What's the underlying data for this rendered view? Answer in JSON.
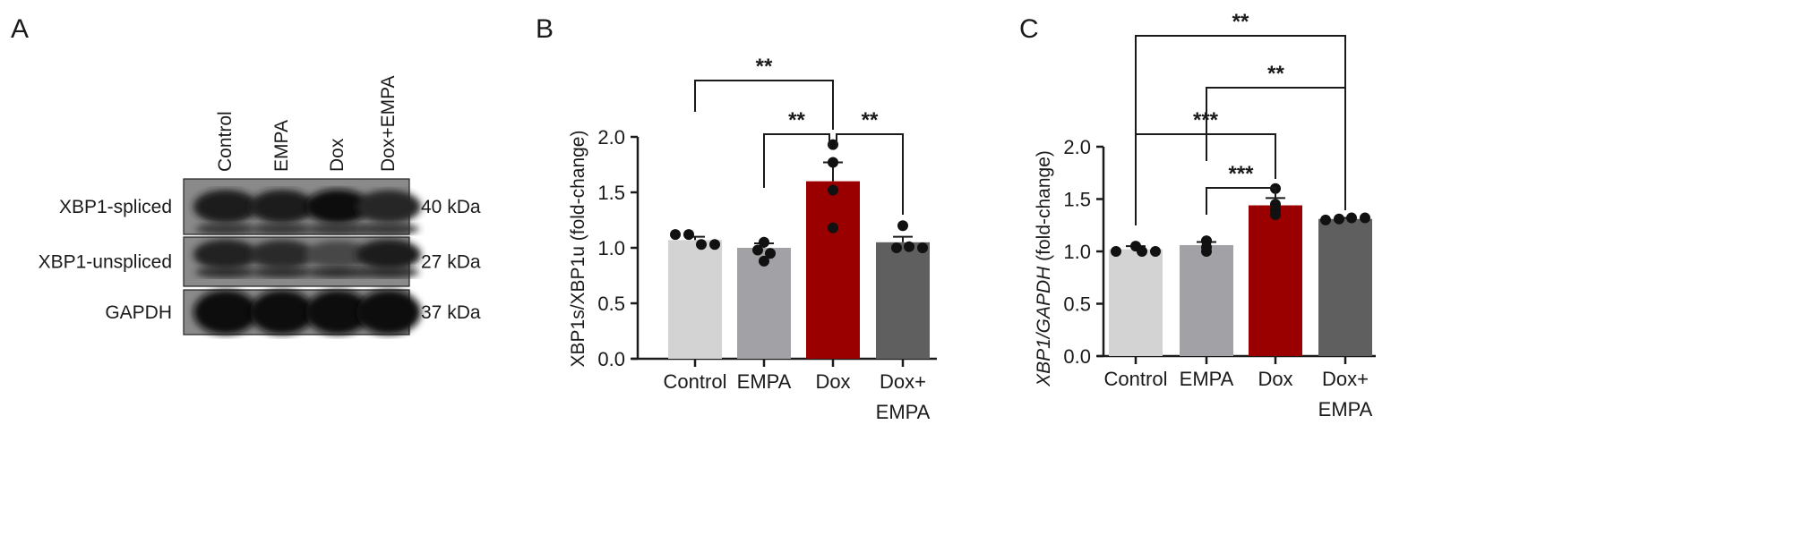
{
  "panel_a": {
    "letter": "A",
    "lanes": [
      "Control",
      "EMPA",
      "Dox",
      "Dox+EMPA"
    ],
    "rows": [
      {
        "label": "XBP1-spliced",
        "size": "40 kDa",
        "intensity": [
          0.85,
          0.85,
          1.0,
          0.75
        ]
      },
      {
        "label": "XBP1-unspliced",
        "size": "27 kDa",
        "intensity": [
          0.8,
          0.7,
          0.45,
          0.85
        ]
      },
      {
        "label": "GAPDH",
        "size": "37 kDa",
        "intensity": [
          1.0,
          1.0,
          1.0,
          1.0
        ]
      }
    ]
  },
  "chart_data": [
    {
      "type": "bar",
      "panel": "B",
      "categories": [
        "Control",
        "EMPA",
        "Dox",
        "Dox+\nEMPA"
      ],
      "category_lines": [
        [
          "Control"
        ],
        [
          "EMPA"
        ],
        [
          "Dox"
        ],
        [
          "Dox+",
          "EMPA"
        ]
      ],
      "values": [
        1.07,
        1.0,
        1.6,
        1.05
      ],
      "sem": [
        0.03,
        0.04,
        0.17,
        0.05
      ],
      "points": [
        [
          1.12,
          1.12,
          1.03,
          1.03
        ],
        [
          1.05,
          0.98,
          0.95,
          0.88
        ],
        [
          1.93,
          1.77,
          1.52,
          1.18
        ],
        [
          1.2,
          1.0,
          1.01,
          1.0
        ]
      ],
      "colors": [
        "#d3d3d3",
        "#a1a1a6",
        "#9b0000",
        "#5f5f5f"
      ],
      "ylabel": "XBP1s/XBP1u (fold-change)",
      "ylim": [
        0,
        2.0
      ],
      "yticks": [
        "0.0",
        "0.5",
        "1.0",
        "1.5",
        "2.0"
      ],
      "significance": [
        {
          "from": 0,
          "to": 2,
          "label": "**"
        },
        {
          "from": 1,
          "to": 2,
          "label": "**"
        },
        {
          "from": 2,
          "to": 3,
          "label": "**"
        }
      ]
    },
    {
      "type": "bar",
      "panel": "C",
      "categories": [
        "Control",
        "EMPA",
        "Dox",
        "Dox+\nEMPA"
      ],
      "category_lines": [
        [
          "Control"
        ],
        [
          "EMPA"
        ],
        [
          "Dox"
        ],
        [
          "Dox+",
          "EMPA"
        ]
      ],
      "values": [
        1.02,
        1.06,
        1.44,
        1.31
      ],
      "sem": [
        0.03,
        0.03,
        0.07,
        0.01
      ],
      "points": [
        [
          1.0,
          1.05,
          1.0,
          1.0
        ],
        [
          1.1,
          1.04,
          1.1,
          1.0
        ],
        [
          1.6,
          1.4,
          1.45,
          1.35
        ],
        [
          1.3,
          1.31,
          1.32,
          1.32
        ]
      ],
      "colors": [
        "#d3d3d3",
        "#a1a1a6",
        "#9b0000",
        "#5f5f5f"
      ],
      "ylabel_italic": "XBP1/GAPDH",
      "ylabel_rest": " (fold-change)",
      "ylim": [
        0,
        2.0
      ],
      "yticks": [
        "0.0",
        "0.5",
        "1.0",
        "1.5",
        "2.0"
      ],
      "significance": [
        {
          "from": 0,
          "to": 3,
          "label": "**"
        },
        {
          "from": 1,
          "to": 3,
          "label": "**"
        },
        {
          "from": 0,
          "to": 2,
          "label": "***"
        },
        {
          "from": 1,
          "to": 2,
          "label": "***"
        }
      ]
    }
  ]
}
